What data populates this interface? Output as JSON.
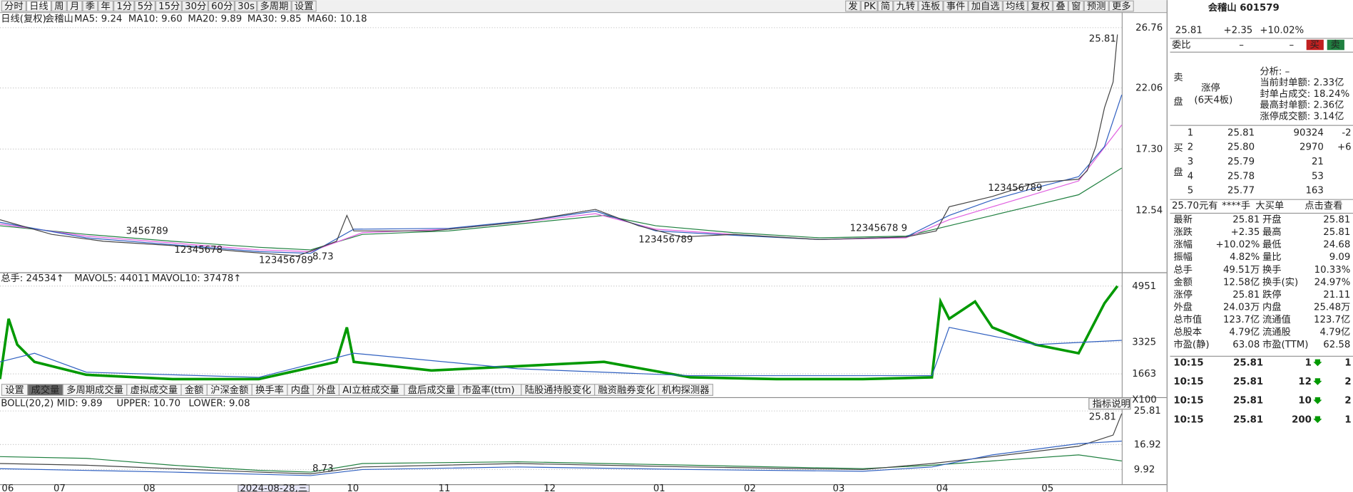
{
  "toolbar": {
    "left": [
      "分时",
      "日线",
      "周",
      "月",
      "季",
      "年",
      "1分",
      "5分",
      "15分",
      "30分",
      "60分",
      "30s",
      "多周期",
      "设置"
    ],
    "right": [
      "发",
      "PK",
      "简",
      "九转",
      "连板",
      "事件",
      "加自选",
      "均线",
      "复权",
      "叠",
      "窗",
      "预测",
      "更多"
    ]
  },
  "main": {
    "title": "日线(复权)",
    "name": "会稽山",
    "ma": [
      {
        "label": "MA5: 9.24",
        "color": "#333333"
      },
      {
        "label": "MA10: 9.60",
        "color": "#3060c0"
      },
      {
        "label": "MA20: 9.89",
        "color": "#e060e0"
      },
      {
        "label": "MA30: 9.85",
        "color": "#208040"
      },
      {
        "label": "MA60: 10.18",
        "color": "#2050a0"
      }
    ],
    "axis": [
      "26.76",
      "22.06",
      "17.30",
      "12.54"
    ],
    "annotations": [
      "25.81",
      "8.73",
      "3456789",
      "12345678",
      "123456789",
      "123456789",
      "12345678 9",
      "123456789"
    ]
  },
  "volume": {
    "legend": [
      "总手: 24534↑",
      "MAVOL5: 44011",
      "MAVOL10: 37478↑"
    ],
    "axis": [
      "4951",
      "3325",
      "1663",
      "X100"
    ]
  },
  "tabs": [
    "设置",
    "成交量",
    "多周期成交量",
    "虚拟成交量",
    "金额",
    "沪深金额",
    "换手率",
    "内盘",
    "外盘",
    "AI立桩成交量",
    "盘后成交量",
    "市盈率(ttm)",
    "陆股通持股变化",
    "融资融券变化",
    "机构探测器"
  ],
  "boll": {
    "legend": [
      "BOLL(20,2) MID: 9.89",
      "UPPER: 10.70",
      "LOWER: 9.08"
    ],
    "help": "指标说明",
    "axis": [
      "25.81",
      "16.92",
      "9.92"
    ],
    "annotations": [
      "25.81",
      "8.73"
    ]
  },
  "dates": [
    "06",
    "07",
    "08",
    "2024-08-28,三",
    "10",
    "11",
    "12",
    "01",
    "02",
    "03",
    "04",
    "05"
  ],
  "quote": {
    "name": "会稽山 601579",
    "price": "25.81",
    "change": "+2.35",
    "pct": "+10.02%",
    "weibi": [
      "委比",
      "–",
      "–",
      "买",
      "卖"
    ],
    "sell_label": [
      "卖",
      "盘"
    ],
    "limit": "涨停",
    "limit_days": "(6天4板)",
    "analysis": [
      "分析: –",
      "当前封单额: 2.33亿",
      "封单占成交: 18.24%",
      "最高封单额: 2.36亿",
      "涨停成交额: 3.14亿"
    ],
    "buy_label": [
      "买",
      "盘"
    ],
    "bids": [
      {
        "level": "1",
        "price": "25.81",
        "vol": "90324",
        "delta": "-2"
      },
      {
        "level": "2",
        "price": "25.80",
        "vol": "2970",
        "delta": "+6"
      },
      {
        "level": "3",
        "price": "25.79",
        "vol": "21"
      },
      {
        "level": "4",
        "price": "25.78",
        "vol": "53"
      },
      {
        "level": "5",
        "price": "25.77",
        "vol": "163"
      }
    ],
    "bigorder": [
      "25.70元有",
      "****手",
      "大买单",
      "点击查看"
    ],
    "stats": [
      [
        "最新",
        "25.81",
        "开盘",
        "25.81"
      ],
      [
        "涨跌",
        "+2.35",
        "最高",
        "25.81"
      ],
      [
        "涨幅",
        "+10.02%",
        "最低",
        "24.68"
      ],
      [
        "振幅",
        "4.82%",
        "量比",
        "9.09"
      ],
      [
        "总手",
        "49.51万",
        "换手",
        "10.33%"
      ],
      [
        "金额",
        "12.58亿",
        "换手(实)",
        "24.97%"
      ],
      [
        "涨停",
        "25.81",
        "跌停",
        "21.11"
      ],
      [
        "外盘",
        "24.03万",
        "内盘",
        "25.48万"
      ],
      [
        "总市值",
        "123.7亿",
        "流通值",
        "123.7亿"
      ],
      [
        "总股本",
        "4.79亿",
        "流通股",
        "4.79亿"
      ],
      [
        "市盈(静)",
        "63.08",
        "市盈(TTM)",
        "62.58"
      ]
    ],
    "trades": [
      [
        "10:15",
        "25.81",
        "1",
        "1"
      ],
      [
        "10:15",
        "25.81",
        "12",
        "2"
      ],
      [
        "10:15",
        "25.81",
        "10",
        "2"
      ],
      [
        "10:15",
        "25.81",
        "200",
        "1"
      ]
    ]
  }
}
